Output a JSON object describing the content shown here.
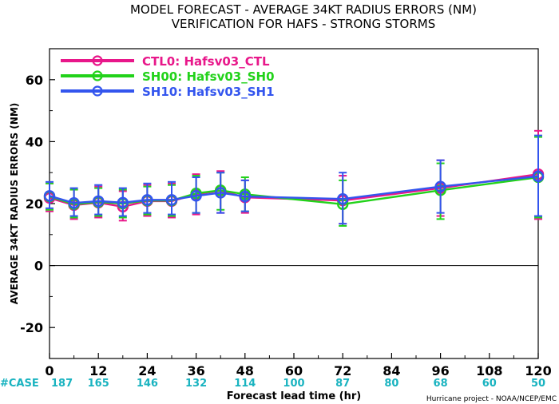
{
  "chart_data": {
    "type": "line",
    "title": "MODEL FORECAST - AVERAGE 34KT RADIUS ERRORS (NM)",
    "subtitle": "VERIFICATION FOR HAFS - STRONG STORMS",
    "xlabel": "Forecast lead time (hr)",
    "ylabel": "AVERAGE 34KT RADIUS ERRORS (NM)",
    "xlim": [
      0,
      120
    ],
    "ylim": [
      -30,
      70
    ],
    "x_ticks": [
      0,
      12,
      24,
      36,
      48,
      60,
      72,
      84,
      96,
      108,
      120
    ],
    "y_ticks": [
      -20,
      0,
      20,
      40,
      60
    ],
    "zero_line": true,
    "case_label": "#CASE",
    "case_counts": [
      187,
      165,
      146,
      132,
      114,
      100,
      87,
      80,
      68,
      60,
      50
    ],
    "legend_position": "top-left",
    "credit": "Hurricane project - NOAA/NCEP/EMC",
    "series": [
      {
        "name": "CTL0: Hafsv03_CTL",
        "color": "#e8178a",
        "x": [
          0,
          6,
          12,
          18,
          24,
          30,
          36,
          42,
          48,
          72,
          96,
          120
        ],
        "y": [
          21.8,
          19.5,
          20.3,
          19.0,
          20.8,
          20.8,
          23.0,
          24.2,
          22.0,
          21.0,
          25.0,
          29.5
        ],
        "err_low": [
          17.5,
          15.0,
          15.5,
          14.5,
          16.0,
          15.5,
          16.5,
          17.0,
          17.0,
          13.5,
          16.0,
          15.0
        ],
        "err_high": [
          26.5,
          24.5,
          25.5,
          24.0,
          26.0,
          26.5,
          29.5,
          30.5,
          27.5,
          29.0,
          34.0,
          43.5
        ]
      },
      {
        "name": "SH00: Hafsv03_SH0",
        "color": "#22d21a",
        "x": [
          0,
          6,
          12,
          18,
          24,
          30,
          36,
          42,
          48,
          72,
          96,
          120
        ],
        "y": [
          22.3,
          19.8,
          20.5,
          20.0,
          21.0,
          21.0,
          23.3,
          24.3,
          23.0,
          19.8,
          24.3,
          28.5
        ],
        "err_low": [
          18.0,
          15.5,
          16.0,
          15.5,
          16.5,
          16.0,
          17.0,
          18.0,
          17.5,
          12.8,
          15.0,
          15.5
        ],
        "err_high": [
          26.5,
          24.5,
          25.0,
          24.5,
          25.5,
          26.0,
          29.0,
          30.0,
          28.5,
          27.5,
          33.0,
          41.5
        ]
      },
      {
        "name": "SH10: Hafsv03_SH1",
        "color": "#3355ee",
        "x": [
          0,
          6,
          12,
          18,
          24,
          30,
          36,
          42,
          48,
          72,
          96,
          120
        ],
        "y": [
          22.5,
          20.2,
          20.8,
          20.3,
          21.2,
          21.2,
          22.5,
          23.5,
          22.3,
          21.5,
          25.5,
          28.8
        ],
        "err_low": [
          18.5,
          16.0,
          16.5,
          16.0,
          17.0,
          16.5,
          17.0,
          17.0,
          17.5,
          13.5,
          17.0,
          16.0
        ],
        "err_high": [
          27.0,
          25.0,
          26.0,
          25.0,
          26.5,
          27.0,
          28.5,
          30.0,
          27.5,
          30.0,
          34.0,
          42.0
        ]
      }
    ]
  }
}
